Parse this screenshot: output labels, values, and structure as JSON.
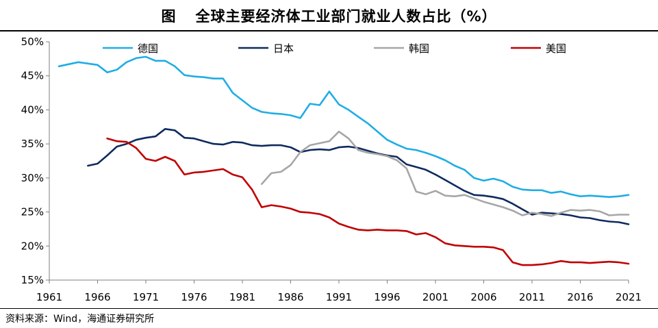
{
  "title_prefix": "图",
  "title": "全球主要经济体工业部门就业人数占比（%）",
  "source": "资料来源：Wind，海通证券研究所",
  "chart_data": {
    "type": "line",
    "title": "全球主要经济体工业部门就业人数占比（%）",
    "xlabel": "",
    "ylabel": "",
    "xlim": [
      1961,
      2021
    ],
    "ylim": [
      15,
      50
    ],
    "x_ticks": [
      1961,
      1966,
      1971,
      1976,
      1981,
      1986,
      1991,
      1996,
      2001,
      2006,
      2011,
      2016,
      2021
    ],
    "y_ticks": [
      15,
      20,
      25,
      30,
      35,
      40,
      45,
      50
    ],
    "y_tick_format": "%",
    "grid": false,
    "legend_position": "top",
    "series": [
      {
        "name": "德国",
        "color": "#1FADE4",
        "points": [
          [
            1962,
            46.4
          ],
          [
            1963,
            46.7
          ],
          [
            1964,
            47.0
          ],
          [
            1965,
            46.8
          ],
          [
            1966,
            46.6
          ],
          [
            1967,
            45.5
          ],
          [
            1968,
            45.9
          ],
          [
            1969,
            47.0
          ],
          [
            1970,
            47.6
          ],
          [
            1971,
            47.8
          ],
          [
            1972,
            47.2
          ],
          [
            1973,
            47.2
          ],
          [
            1974,
            46.4
          ],
          [
            1975,
            45.1
          ],
          [
            1976,
            44.9
          ],
          [
            1977,
            44.8
          ],
          [
            1978,
            44.6
          ],
          [
            1979,
            44.6
          ],
          [
            1980,
            42.5
          ],
          [
            1981,
            41.4
          ],
          [
            1982,
            40.3
          ],
          [
            1983,
            39.7
          ],
          [
            1984,
            39.5
          ],
          [
            1985,
            39.4
          ],
          [
            1986,
            39.2
          ],
          [
            1987,
            38.8
          ],
          [
            1988,
            40.9
          ],
          [
            1989,
            40.7
          ],
          [
            1990,
            42.7
          ],
          [
            1991,
            40.8
          ],
          [
            1992,
            40.0
          ],
          [
            1993,
            39.0
          ],
          [
            1994,
            38.0
          ],
          [
            1995,
            36.8
          ],
          [
            1996,
            35.6
          ],
          [
            1997,
            34.9
          ],
          [
            1998,
            34.3
          ],
          [
            1999,
            34.1
          ],
          [
            2000,
            33.7
          ],
          [
            2001,
            33.2
          ],
          [
            2002,
            32.6
          ],
          [
            2003,
            31.8
          ],
          [
            2004,
            31.2
          ],
          [
            2005,
            30.0
          ],
          [
            2006,
            29.6
          ],
          [
            2007,
            29.9
          ],
          [
            2008,
            29.5
          ],
          [
            2009,
            28.7
          ],
          [
            2010,
            28.3
          ],
          [
            2011,
            28.2
          ],
          [
            2012,
            28.2
          ],
          [
            2013,
            27.8
          ],
          [
            2014,
            28.0
          ],
          [
            2015,
            27.6
          ],
          [
            2016,
            27.3
          ],
          [
            2017,
            27.4
          ],
          [
            2018,
            27.3
          ],
          [
            2019,
            27.2
          ],
          [
            2020,
            27.3
          ],
          [
            2021,
            27.5
          ]
        ]
      },
      {
        "name": "日本",
        "color": "#0E2A5F",
        "points": [
          [
            1965,
            31.8
          ],
          [
            1966,
            32.1
          ],
          [
            1967,
            33.3
          ],
          [
            1968,
            34.6
          ],
          [
            1969,
            35.0
          ],
          [
            1970,
            35.6
          ],
          [
            1971,
            35.9
          ],
          [
            1972,
            36.1
          ],
          [
            1973,
            37.2
          ],
          [
            1974,
            37.0
          ],
          [
            1975,
            35.9
          ],
          [
            1976,
            35.8
          ],
          [
            1977,
            35.4
          ],
          [
            1978,
            35.0
          ],
          [
            1979,
            34.9
          ],
          [
            1980,
            35.3
          ],
          [
            1981,
            35.2
          ],
          [
            1982,
            34.8
          ],
          [
            1983,
            34.7
          ],
          [
            1984,
            34.8
          ],
          [
            1985,
            34.8
          ],
          [
            1986,
            34.5
          ],
          [
            1987,
            33.8
          ],
          [
            1988,
            34.1
          ],
          [
            1989,
            34.2
          ],
          [
            1990,
            34.1
          ],
          [
            1991,
            34.5
          ],
          [
            1992,
            34.6
          ],
          [
            1993,
            34.4
          ],
          [
            1994,
            34.0
          ],
          [
            1995,
            33.6
          ],
          [
            1996,
            33.3
          ],
          [
            1997,
            33.1
          ],
          [
            1998,
            32.0
          ],
          [
            1999,
            31.6
          ],
          [
            2000,
            31.2
          ],
          [
            2001,
            30.5
          ],
          [
            2002,
            29.7
          ],
          [
            2003,
            28.9
          ],
          [
            2004,
            28.1
          ],
          [
            2005,
            27.5
          ],
          [
            2006,
            27.4
          ],
          [
            2007,
            27.2
          ],
          [
            2008,
            26.9
          ],
          [
            2009,
            26.2
          ],
          [
            2010,
            25.4
          ],
          [
            2011,
            24.6
          ],
          [
            2012,
            24.9
          ],
          [
            2013,
            24.8
          ],
          [
            2014,
            24.7
          ],
          [
            2015,
            24.5
          ],
          [
            2016,
            24.2
          ],
          [
            2017,
            24.1
          ],
          [
            2018,
            23.8
          ],
          [
            2019,
            23.6
          ],
          [
            2020,
            23.5
          ],
          [
            2021,
            23.2
          ]
        ]
      },
      {
        "name": "韩国",
        "color": "#A6A6A6",
        "points": [
          [
            1983,
            29.1
          ],
          [
            1984,
            30.7
          ],
          [
            1985,
            30.9
          ],
          [
            1986,
            31.9
          ],
          [
            1987,
            33.8
          ],
          [
            1988,
            34.8
          ],
          [
            1989,
            35.1
          ],
          [
            1990,
            35.4
          ],
          [
            1991,
            36.8
          ],
          [
            1992,
            35.8
          ],
          [
            1993,
            34.1
          ],
          [
            1994,
            33.7
          ],
          [
            1995,
            33.5
          ],
          [
            1996,
            33.2
          ],
          [
            1997,
            32.6
          ],
          [
            1998,
            31.4
          ],
          [
            1999,
            28.0
          ],
          [
            2000,
            27.6
          ],
          [
            2001,
            28.1
          ],
          [
            2002,
            27.4
          ],
          [
            2003,
            27.3
          ],
          [
            2004,
            27.5
          ],
          [
            2005,
            27.0
          ],
          [
            2006,
            26.5
          ],
          [
            2007,
            26.1
          ],
          [
            2008,
            25.7
          ],
          [
            2009,
            25.2
          ],
          [
            2010,
            24.5
          ],
          [
            2011,
            24.9
          ],
          [
            2012,
            24.7
          ],
          [
            2013,
            24.4
          ],
          [
            2014,
            24.9
          ],
          [
            2015,
            25.3
          ],
          [
            2016,
            25.2
          ],
          [
            2017,
            25.3
          ],
          [
            2018,
            25.1
          ],
          [
            2019,
            24.5
          ],
          [
            2020,
            24.6
          ],
          [
            2021,
            24.6
          ]
        ]
      },
      {
        "name": "美国",
        "color": "#C00000",
        "points": [
          [
            1967,
            35.8
          ],
          [
            1968,
            35.4
          ],
          [
            1969,
            35.3
          ],
          [
            1970,
            34.4
          ],
          [
            1971,
            32.8
          ],
          [
            1972,
            32.5
          ],
          [
            1973,
            33.1
          ],
          [
            1974,
            32.5
          ],
          [
            1975,
            30.5
          ],
          [
            1976,
            30.8
          ],
          [
            1977,
            30.9
          ],
          [
            1978,
            31.1
          ],
          [
            1979,
            31.3
          ],
          [
            1980,
            30.5
          ],
          [
            1981,
            30.1
          ],
          [
            1982,
            28.3
          ],
          [
            1983,
            25.7
          ],
          [
            1984,
            26.0
          ],
          [
            1985,
            25.8
          ],
          [
            1986,
            25.5
          ],
          [
            1987,
            25.0
          ],
          [
            1988,
            24.9
          ],
          [
            1989,
            24.7
          ],
          [
            1990,
            24.2
          ],
          [
            1991,
            23.3
          ],
          [
            1992,
            22.8
          ],
          [
            1993,
            22.4
          ],
          [
            1994,
            22.3
          ],
          [
            1995,
            22.4
          ],
          [
            1996,
            22.3
          ],
          [
            1997,
            22.3
          ],
          [
            1998,
            22.2
          ],
          [
            1999,
            21.7
          ],
          [
            2000,
            21.9
          ],
          [
            2001,
            21.3
          ],
          [
            2002,
            20.4
          ],
          [
            2003,
            20.1
          ],
          [
            2004,
            20.0
          ],
          [
            2005,
            19.9
          ],
          [
            2006,
            19.9
          ],
          [
            2007,
            19.8
          ],
          [
            2008,
            19.4
          ],
          [
            2009,
            17.6
          ],
          [
            2010,
            17.2
          ],
          [
            2011,
            17.2
          ],
          [
            2012,
            17.3
          ],
          [
            2013,
            17.5
          ],
          [
            2014,
            17.8
          ],
          [
            2015,
            17.6
          ],
          [
            2016,
            17.6
          ],
          [
            2017,
            17.5
          ],
          [
            2018,
            17.6
          ],
          [
            2019,
            17.7
          ],
          [
            2020,
            17.6
          ],
          [
            2021,
            17.4
          ]
        ]
      }
    ]
  }
}
